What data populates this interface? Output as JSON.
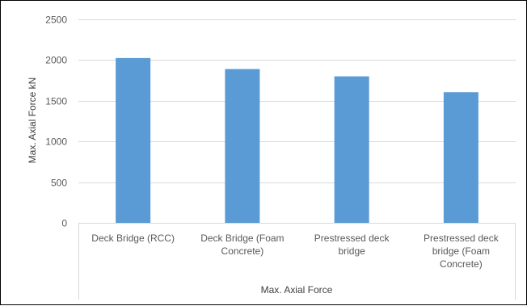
{
  "chart_data": {
    "type": "bar",
    "categories": [
      [
        "Deck Bridge (RCC)"
      ],
      [
        "Deck Bridge (Foam",
        "Concrete)"
      ],
      [
        "Prestressed deck",
        "bridge"
      ],
      [
        "Prestressed deck",
        "bridge (Foam",
        "Concrete)"
      ]
    ],
    "values": [
      2025,
      1890,
      1800,
      1605
    ],
    "ylabel": "Max. Axial  Force kN",
    "xlabel": "Max. Axial Force",
    "ylim": [
      0,
      2500
    ],
    "yticks": [
      0,
      500,
      1000,
      1500,
      2000,
      2500
    ],
    "grid": true,
    "bar_color": "#5B9BD5",
    "grid_color": "#D9D9D9"
  }
}
